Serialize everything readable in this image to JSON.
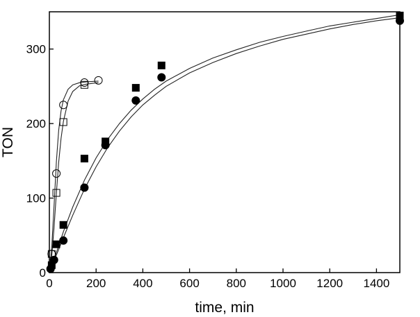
{
  "chart_data": {
    "type": "scatter",
    "title": "",
    "xlabel": "time, min",
    "ylabel": "TON",
    "xlim": [
      0,
      1500
    ],
    "ylim": [
      0,
      350
    ],
    "x_ticks": [
      0,
      200,
      400,
      600,
      800,
      1000,
      1200,
      1400
    ],
    "y_ticks": [
      0,
      100,
      200,
      300
    ],
    "grid": false,
    "series": [
      {
        "name": "open circles",
        "marker": "circle",
        "filled": false,
        "points": [
          [
            10,
            25
          ],
          [
            30,
            133
          ],
          [
            60,
            225
          ],
          [
            150,
            255
          ],
          [
            210,
            258
          ]
        ],
        "fit": [
          [
            0,
            0
          ],
          [
            10,
            34
          ],
          [
            20,
            89
          ],
          [
            30,
            149
          ],
          [
            40,
            191
          ],
          [
            50,
            217
          ],
          [
            60,
            232
          ],
          [
            80,
            246
          ],
          [
            100,
            252
          ],
          [
            130,
            255
          ],
          [
            160,
            256
          ],
          [
            210,
            257
          ]
        ]
      },
      {
        "name": "open squares",
        "marker": "square",
        "filled": false,
        "points": [
          [
            10,
            25
          ],
          [
            30,
            107
          ],
          [
            60,
            202
          ],
          [
            150,
            252
          ]
        ],
        "fit": [
          [
            0,
            0
          ],
          [
            10,
            22
          ],
          [
            20,
            60
          ],
          [
            30,
            107
          ],
          [
            40,
            148
          ],
          [
            50,
            180
          ],
          [
            60,
            203
          ],
          [
            80,
            230
          ],
          [
            100,
            243
          ],
          [
            130,
            251
          ],
          [
            160,
            253
          ],
          [
            210,
            255
          ]
        ]
      },
      {
        "name": "filled squares",
        "marker": "square",
        "filled": true,
        "points": [
          [
            10,
            10
          ],
          [
            30,
            38
          ],
          [
            60,
            64
          ],
          [
            150,
            153
          ],
          [
            240,
            176
          ],
          [
            370,
            248
          ],
          [
            480,
            278
          ],
          [
            1500,
            345
          ]
        ],
        "fit": [
          [
            0,
            0
          ],
          [
            10,
            9
          ],
          [
            20,
            18
          ],
          [
            40,
            36
          ],
          [
            60,
            55
          ],
          [
            100,
            88
          ],
          [
            150,
            124
          ],
          [
            200,
            154
          ],
          [
            250,
            179
          ],
          [
            300,
            200
          ],
          [
            350,
            218
          ],
          [
            400,
            233
          ],
          [
            450,
            246
          ],
          [
            500,
            257
          ],
          [
            600,
            274
          ],
          [
            700,
            288
          ],
          [
            800,
            299
          ],
          [
            900,
            309
          ],
          [
            1000,
            317
          ],
          [
            1100,
            324
          ],
          [
            1200,
            331
          ],
          [
            1300,
            336
          ],
          [
            1400,
            341
          ],
          [
            1500,
            346
          ]
        ]
      },
      {
        "name": "filled circles",
        "marker": "circle",
        "filled": true,
        "points": [
          [
            5,
            5
          ],
          [
            20,
            17
          ],
          [
            60,
            43
          ],
          [
            150,
            114
          ],
          [
            240,
            171
          ],
          [
            370,
            231
          ],
          [
            480,
            262
          ],
          [
            1500,
            338
          ]
        ],
        "fit": [
          [
            0,
            0
          ],
          [
            10,
            8
          ],
          [
            20,
            16
          ],
          [
            40,
            31
          ],
          [
            60,
            47
          ],
          [
            100,
            77
          ],
          [
            150,
            112
          ],
          [
            200,
            142
          ],
          [
            250,
            168
          ],
          [
            300,
            190
          ],
          [
            350,
            209
          ],
          [
            400,
            225
          ],
          [
            450,
            238
          ],
          [
            500,
            250
          ],
          [
            600,
            268
          ],
          [
            700,
            282
          ],
          [
            800,
            294
          ],
          [
            900,
            304
          ],
          [
            1000,
            313
          ],
          [
            1100,
            320
          ],
          [
            1200,
            327
          ],
          [
            1300,
            333
          ],
          [
            1400,
            338
          ],
          [
            1500,
            342
          ]
        ]
      }
    ]
  }
}
